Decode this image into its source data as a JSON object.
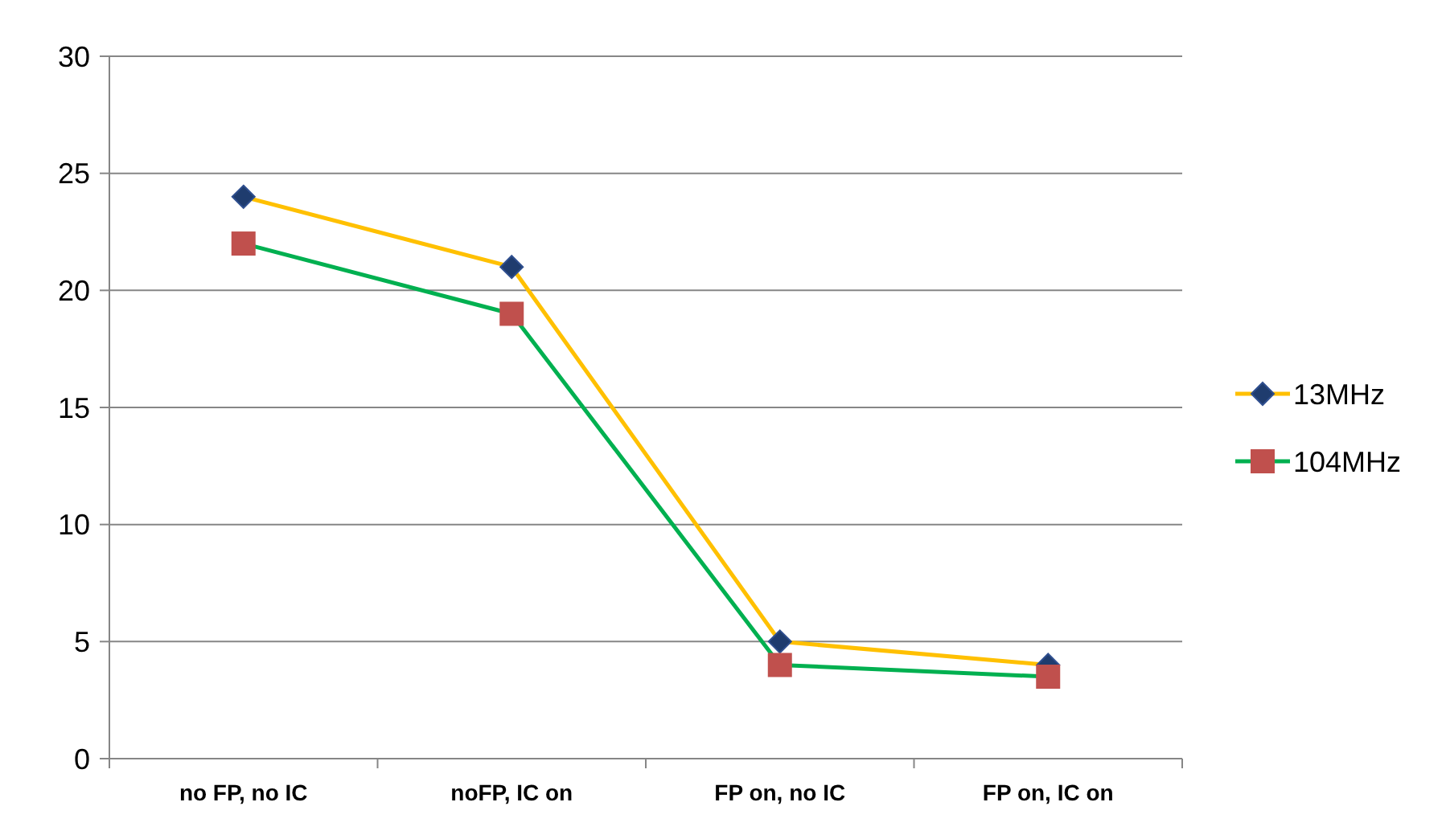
{
  "chart_data": {
    "type": "line",
    "categories": [
      "no FP, no IC",
      "noFP, IC on",
      "FP on, no IC",
      "FP on, IC on"
    ],
    "series": [
      {
        "name": "13MHz",
        "color": "#ffc000",
        "colors": [
          "#1f3c6e",
          "#1f3c6e",
          "#1f3c6e",
          "#1f3c6e"
        ],
        "marker": "diamond",
        "values": [
          24,
          21,
          5,
          4
        ]
      },
      {
        "name": "104MHz",
        "color": "#00b050",
        "colors": [
          "#c0504d",
          "#c0504d",
          "#c0504d",
          "#c0504d"
        ],
        "marker": "square",
        "values": [
          22,
          19,
          4,
          3.5
        ]
      }
    ],
    "ylim": [
      0,
      30
    ],
    "yticks": [
      0,
      5,
      10,
      15,
      20,
      25,
      30
    ],
    "grid": "y",
    "legend": "right"
  }
}
